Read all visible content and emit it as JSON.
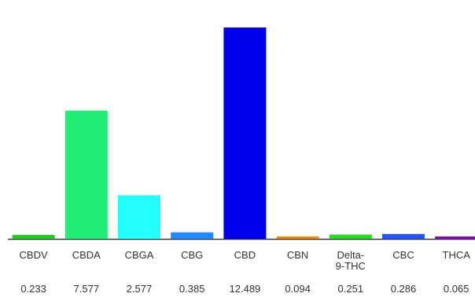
{
  "chart_data": {
    "type": "bar",
    "title": "",
    "xlabel": "",
    "ylabel": "",
    "categories": [
      "CBDV",
      "CBDA",
      "CBGA",
      "CBG",
      "CBD",
      "CBN",
      "Delta-\n9-THC",
      "CBC",
      "THCA"
    ],
    "values": [
      0.233,
      7.577,
      2.577,
      0.385,
      12.489,
      0.094,
      0.251,
      0.286,
      0.065
    ],
    "value_labels": [
      "0.233",
      "7.577",
      "2.577",
      "0.385",
      "12.489",
      "0.094",
      "0.251",
      "0.286",
      "0.065"
    ],
    "colors": [
      "#22cc22",
      "#22ee77",
      "#22ffff",
      "#2288ff",
      "#0000ee",
      "#ff8800",
      "#22dd22",
      "#2255ff",
      "#8800cc"
    ],
    "ylim": [
      0,
      12.489
    ],
    "grid": false,
    "legend": "none"
  }
}
